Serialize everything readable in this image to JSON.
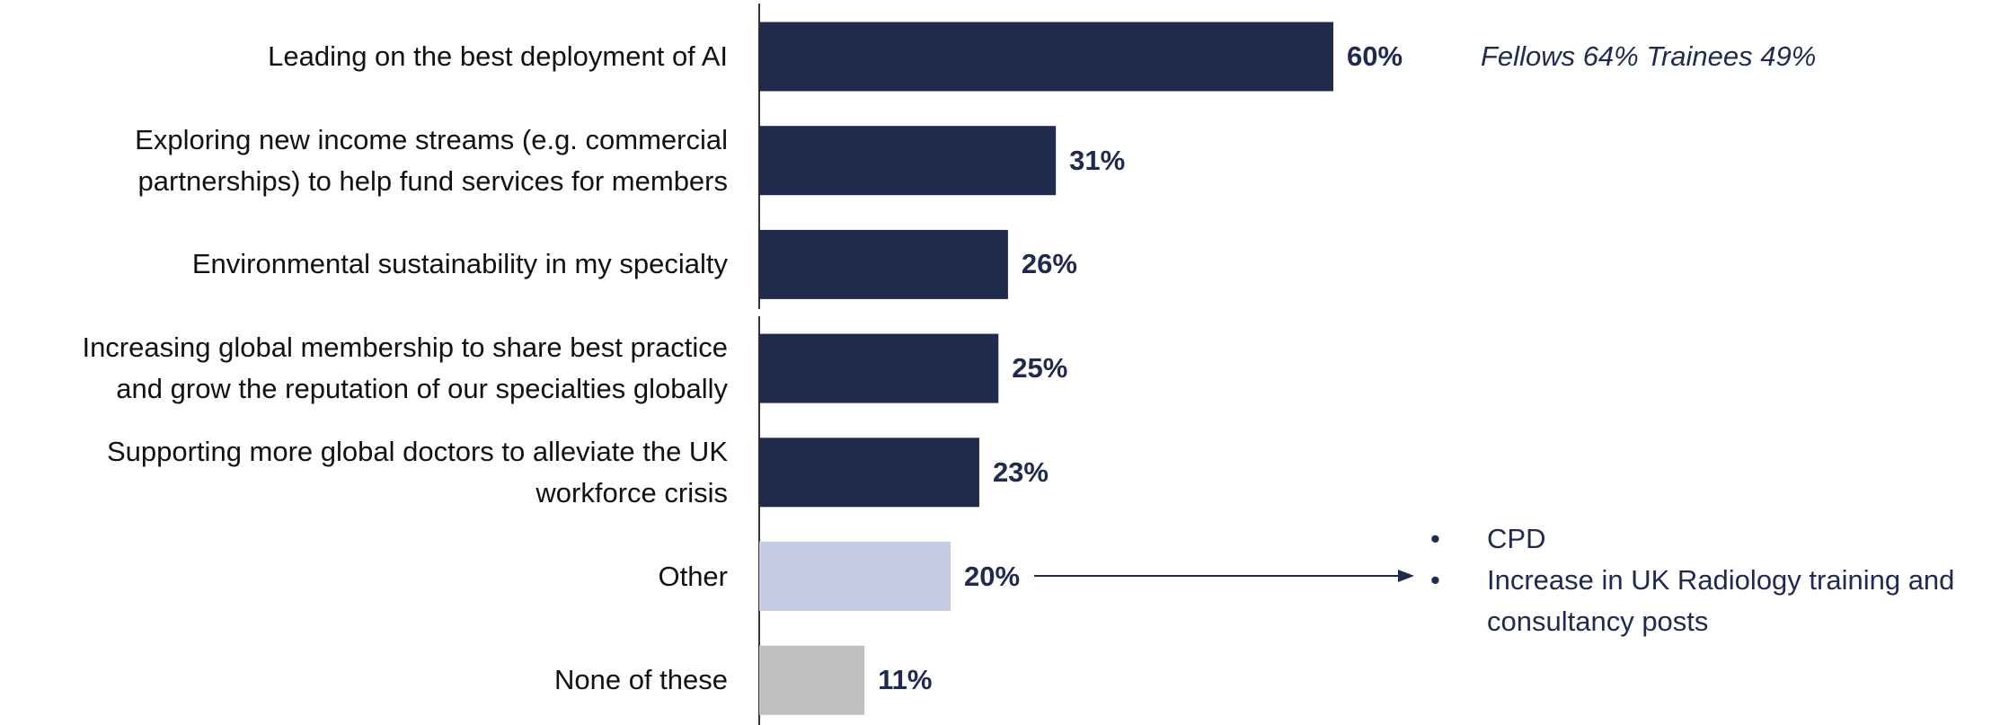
{
  "chart_data": {
    "type": "barh",
    "categories": [
      "Leading on the best deployment of AI",
      "Exploring new income streams (e.g. commercial\npartnerships) to help fund services for members",
      "Environmental sustainability in my specialty",
      "Increasing global membership to share best practice\nand grow the reputation of our specialties globally",
      "Supporting more global doctors to alleviate the UK\nworkforce crisis",
      "Other",
      "None of these"
    ],
    "values": [
      60,
      31,
      26,
      25,
      23,
      20,
      11
    ],
    "value_labels": [
      "60%",
      "31%",
      "26%",
      "25%",
      "23%",
      "20%",
      "11%"
    ],
    "colors": [
      "#1f2a4d",
      "#1f2a4d",
      "#1f2a4d",
      "#1f2a4d",
      "#1f2a4d",
      "#c5cde6",
      "#bfbfbf"
    ],
    "annotation": "Fellows 64% Trainees 49%",
    "other_details": [
      "CPD",
      "Increase in UK Radiology training and\nconsultancy posts"
    ]
  }
}
